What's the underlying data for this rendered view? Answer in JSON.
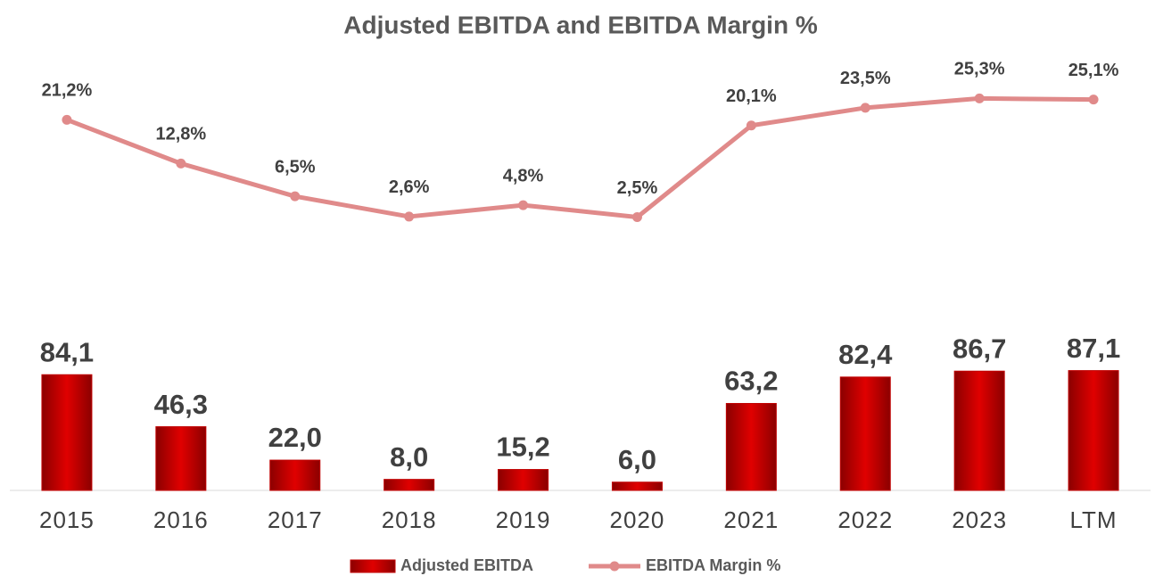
{
  "chart_data": {
    "type": "bar",
    "title": "Adjusted EBITDA and EBITDA Margin %",
    "categories": [
      "2015",
      "2016",
      "2017",
      "2018",
      "2019",
      "2020",
      "2021",
      "2022",
      "2023",
      "LTM"
    ],
    "series": [
      {
        "name": "Adjusted EBITDA",
        "type": "bar",
        "color": "#c00000",
        "values": [
          84.1,
          46.3,
          22.0,
          8.0,
          15.2,
          6.0,
          63.2,
          82.4,
          86.7,
          87.1
        ],
        "value_labels": [
          "84,1",
          "46,3",
          "22,0",
          "8,0",
          "15,2",
          "6,0",
          "63,2",
          "82,4",
          "86,7",
          "87,1"
        ]
      },
      {
        "name": "EBITDA Margin %",
        "type": "line",
        "axis": "y2",
        "color": "#e08a8a",
        "values": [
          21.2,
          12.8,
          6.5,
          2.6,
          4.8,
          2.5,
          20.1,
          23.5,
          25.3,
          25.1
        ],
        "value_labels": [
          "21,2%",
          "12,8%",
          "6,5%",
          "2,6%",
          "4,8%",
          "2,5%",
          "20,1%",
          "23,5%",
          "25,3%",
          "25,1%"
        ]
      }
    ],
    "ylim": [
      0,
      350
    ],
    "y2lim": [
      -50,
      42.5
    ],
    "legend": "bottom"
  }
}
